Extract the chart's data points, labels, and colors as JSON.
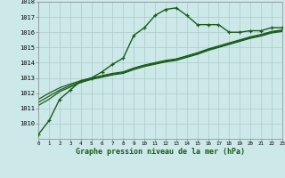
{
  "xlabel": "Graphe pression niveau de la mer (hPa)",
  "background_color": "#cce8e8",
  "grid_color": "#aacccc",
  "line_color": "#1a5c1a",
  "hours": [
    0,
    1,
    2,
    3,
    4,
    5,
    6,
    7,
    8,
    9,
    10,
    11,
    12,
    13,
    14,
    15,
    16,
    17,
    18,
    19,
    20,
    21,
    22,
    23
  ],
  "series_main": [
    1009.3,
    1010.2,
    1011.6,
    1012.2,
    1012.8,
    1013.0,
    1013.4,
    1013.9,
    1014.3,
    1015.8,
    1016.3,
    1017.1,
    1017.5,
    1017.6,
    1017.1,
    1016.5,
    1016.5,
    1016.5,
    1016.0,
    1016.0,
    1016.1,
    1016.1,
    1016.3,
    1016.3
  ],
  "series_a": [
    1011.2,
    1011.6,
    1012.1,
    1012.4,
    1012.7,
    1012.9,
    1013.05,
    1013.2,
    1013.3,
    1013.55,
    1013.75,
    1013.9,
    1014.05,
    1014.15,
    1014.35,
    1014.55,
    1014.8,
    1015.0,
    1015.2,
    1015.4,
    1015.6,
    1015.75,
    1015.95,
    1016.05
  ],
  "series_b": [
    1011.4,
    1011.8,
    1012.2,
    1012.5,
    1012.75,
    1012.95,
    1013.1,
    1013.25,
    1013.35,
    1013.6,
    1013.8,
    1013.95,
    1014.1,
    1014.2,
    1014.4,
    1014.6,
    1014.85,
    1015.05,
    1015.25,
    1015.45,
    1015.65,
    1015.8,
    1016.0,
    1016.1
  ],
  "series_c": [
    1011.6,
    1012.0,
    1012.35,
    1012.6,
    1012.82,
    1013.0,
    1013.15,
    1013.3,
    1013.4,
    1013.65,
    1013.85,
    1014.0,
    1014.15,
    1014.25,
    1014.45,
    1014.65,
    1014.9,
    1015.1,
    1015.3,
    1015.5,
    1015.7,
    1015.85,
    1016.05,
    1016.15
  ],
  "ylim_min": 1009.0,
  "ylim_max": 1018.0,
  "yticks": [
    1010,
    1011,
    1012,
    1013,
    1014,
    1015,
    1016,
    1017,
    1018
  ]
}
